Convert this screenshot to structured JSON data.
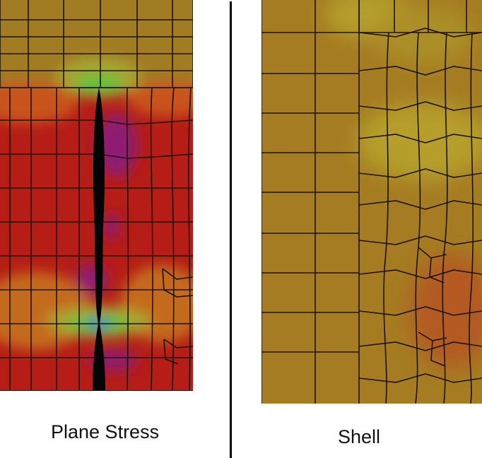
{
  "captions": {
    "left": "Plane Stress",
    "right": "Shell"
  },
  "colors": {
    "stress_red": "#b51d16",
    "stress_dark_orange": "#c9531b",
    "stress_olive": "#a17b24",
    "stress_green": "#62c13a",
    "stress_blue": "#1e6bd8",
    "stress_purple": "#8e1a72",
    "shell_olive": "#a57c22",
    "shell_light": "#b59e2a",
    "shell_orange": "#b35a24",
    "mesh_line": "#1a1208",
    "crack": "#050505",
    "divider": "#000000"
  }
}
